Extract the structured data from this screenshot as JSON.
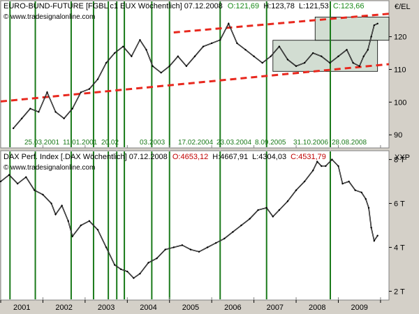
{
  "chart_data": [
    {
      "type": "line",
      "title_parts": {
        "name": "EURO-BUND-FUTURE [FGBL c1 EUX  Wöchentlich] 07.12.2008",
        "open": "O:121,69",
        "high": "H:123,78",
        "low": "L:121,53",
        "close": "C:123,66"
      },
      "source": "www.tradesignalonline.com",
      "unit": "€/EL",
      "ylim": [
        86,
        131
      ],
      "yticks": [
        90,
        100,
        110,
        120
      ],
      "ytick_labels": [
        "90",
        "100",
        "110",
        "120"
      ],
      "x": [
        2000.3,
        2000.5,
        2000.7,
        2000.9,
        2001.1,
        2001.3,
        2001.5,
        2001.7,
        2001.9,
        2002.1,
        2002.3,
        2002.5,
        2002.7,
        2002.9,
        2003.1,
        2003.3,
        2003.45,
        2003.6,
        2003.8,
        2004.0,
        2004.2,
        2004.4,
        2004.6,
        2004.8,
        2005.0,
        2005.2,
        2005.4,
        2005.6,
        2005.8,
        2006.0,
        2006.2,
        2006.4,
        2006.6,
        2006.8,
        2007.0,
        2007.2,
        2007.4,
        2007.6,
        2007.8,
        2008.0,
        2008.2,
        2008.35,
        2008.5,
        2008.6,
        2008.7,
        2008.78,
        2008.85,
        2008.93
      ],
      "values": [
        92,
        95,
        98,
        97,
        103,
        97,
        95,
        98,
        103,
        104,
        107,
        112,
        115,
        117,
        114,
        119,
        116,
        111,
        109,
        111,
        114,
        111,
        114,
        117,
        118,
        119,
        124,
        118,
        116,
        114,
        112,
        114,
        117,
        113,
        111,
        112,
        115,
        114,
        112,
        114,
        116,
        112,
        111,
        114,
        116,
        120,
        123.5,
        124
      ],
      "trendlines": [
        {
          "x": [
            2000.0,
            2009.2
          ],
          "y": [
            100.2,
            111.6
          ]
        },
        {
          "x": [
            2004.1,
            2009.2
          ],
          "y": [
            121.3,
            127.0
          ]
        }
      ],
      "boxes": [
        {
          "x": [
            2006.45,
            2008.93
          ],
          "y": [
            109.4,
            118.9
          ]
        },
        {
          "x": [
            2007.45,
            2009.2
          ],
          "y": [
            118.9,
            126.0
          ]
        }
      ],
      "annotations": [
        "25.03.2001",
        "11.01.2001",
        "20.02",
        "03.2003",
        "17.02.2004",
        "23.03.2004",
        "8.09.2005",
        "31.10.2006",
        "28.08.2008"
      ]
    },
    {
      "type": "line",
      "title_parts": {
        "name": "DAX Perf. Index [.DAX  Wöchentlich] 07.12.2008",
        "open": "O:4653,12",
        "high": "H:4667,91",
        "low": "L:4304,03",
        "close": "C:4531,79"
      },
      "source": "www.tradesignalonline.com",
      "unit": "XXP",
      "ylim": [
        1600,
        8400
      ],
      "yticks": [
        2000,
        4000,
        6000,
        8000
      ],
      "ytick_labels": [
        "2 T",
        "4 T",
        "6 T",
        "8 T"
      ],
      "x": [
        2000.0,
        2000.2,
        2000.4,
        2000.6,
        2000.8,
        2001.0,
        2001.2,
        2001.3,
        2001.45,
        2001.6,
        2001.7,
        2001.9,
        2002.1,
        2002.3,
        2002.5,
        2002.7,
        2002.85,
        2003.0,
        2003.15,
        2003.3,
        2003.5,
        2003.7,
        2003.9,
        2004.1,
        2004.3,
        2004.5,
        2004.7,
        2004.9,
        2005.1,
        2005.3,
        2005.5,
        2005.7,
        2005.9,
        2006.1,
        2006.3,
        2006.45,
        2006.6,
        2006.8,
        2007.0,
        2007.2,
        2007.4,
        2007.5,
        2007.6,
        2007.7,
        2007.85,
        2008.0,
        2008.1,
        2008.25,
        2008.4,
        2008.55,
        2008.65,
        2008.72,
        2008.78,
        2008.85,
        2008.93
      ],
      "values": [
        7000,
        7300,
        6900,
        7200,
        6600,
        6400,
        6000,
        5500,
        5900,
        5200,
        4500,
        5000,
        5200,
        4800,
        4000,
        3200,
        3000,
        2900,
        2600,
        2800,
        3300,
        3500,
        3900,
        4000,
        4100,
        3900,
        3800,
        4000,
        4200,
        4400,
        4700,
        5000,
        5300,
        5700,
        5800,
        5400,
        5700,
        6100,
        6600,
        7000,
        7500,
        7900,
        7700,
        7700,
        8000,
        7700,
        6900,
        7000,
        6600,
        6500,
        6200,
        5800,
        4900,
        4300,
        4532
      ],
      "annotations": []
    }
  ],
  "x_axis": {
    "ticks": [
      2000,
      2001,
      2002,
      2003,
      2004,
      2005,
      2006,
      2007,
      2008,
      2009
    ],
    "tick_labels": [
      "2001",
      "2002",
      "2003",
      "2004",
      "2005",
      "2006",
      "2007",
      "2008",
      "2009"
    ],
    "label_years": [
      2000.5,
      2001.5,
      2002.5,
      2003.5,
      2004.5,
      2005.5,
      2006.5,
      2007.5,
      2008.5
    ],
    "xlim": [
      2000.0,
      2009.2
    ]
  },
  "vertical_markers_x": [
    2000.22,
    2000.82,
    2001.67,
    2002.2,
    2002.55,
    2002.75,
    2002.93,
    2003.58,
    2004.0,
    2005.2,
    2006.3,
    2007.81
  ],
  "colors": {
    "price": "#000000",
    "trendline": "#e8281e",
    "marker": "#1a7a1a",
    "bg_top": "#ffffff",
    "bg_bottom": "#ffffff",
    "box_fill": "#9bb49b",
    "open": "#1a8a1a",
    "close": "#1a8a1a",
    "close_dax": "#c00000"
  }
}
